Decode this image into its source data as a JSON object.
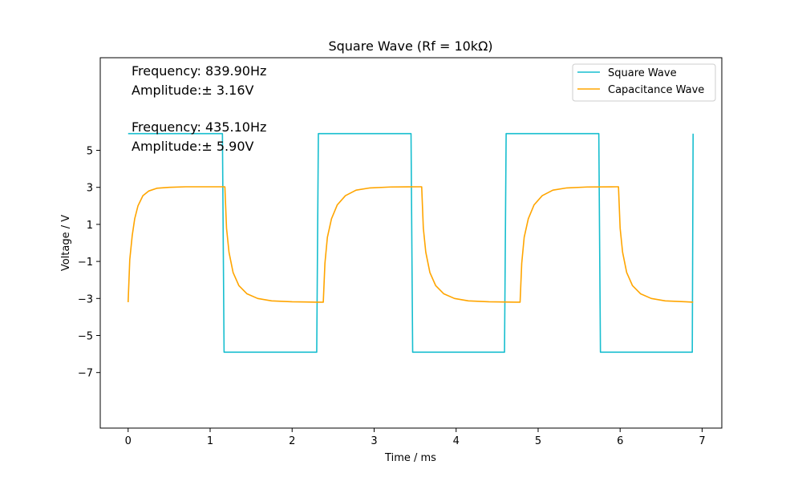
{
  "chart_data": {
    "type": "line",
    "title": "Square Wave (Rf = 10kΩ)",
    "xlabel": "Time / ms",
    "ylabel": "Voltage / V",
    "xlim": [
      -0.34,
      7.24
    ],
    "ylim": [
      -10.0,
      10.0
    ],
    "xticks": [
      0,
      1,
      2,
      3,
      4,
      5,
      6,
      7
    ],
    "xtick_labels": [
      "0",
      "1",
      "2",
      "3",
      "4",
      "5",
      "6",
      "7"
    ],
    "yticks": [
      -7,
      -5,
      -3,
      -1,
      1,
      3,
      5
    ],
    "ytick_labels": [
      "−7",
      "−5",
      "−3",
      "−1",
      "1",
      "3",
      "5"
    ],
    "grid": false,
    "legend_position": "top-right",
    "annotations": [
      "Frequency: 839.90Hz",
      "Amplitude:± 3.16V",
      "Frequency: 435.10Hz",
      "Amplitude:± 5.90V"
    ],
    "series": [
      {
        "name": "Square Wave",
        "color": "#17becf",
        "x": [
          0,
          1.15,
          1.17,
          2.3,
          2.32,
          3.45,
          3.47,
          4.59,
          4.61,
          5.74,
          5.76,
          6.88,
          6.89
        ],
        "y": [
          5.9,
          5.9,
          -5.9,
          -5.9,
          5.9,
          5.9,
          -5.9,
          -5.9,
          5.9,
          5.9,
          -5.9,
          -5.9,
          5.9
        ]
      },
      {
        "name": "Capacitance Wave",
        "color": "#ffa500",
        "x": [
          0.0,
          0.02,
          0.05,
          0.08,
          0.12,
          0.18,
          0.25,
          0.35,
          0.5,
          0.7,
          1.0,
          1.18,
          1.2,
          1.23,
          1.28,
          1.35,
          1.45,
          1.58,
          1.75,
          2.0,
          2.3,
          2.38,
          2.4,
          2.43,
          2.48,
          2.55,
          2.65,
          2.78,
          2.95,
          3.2,
          3.55,
          3.58,
          3.6,
          3.63,
          3.68,
          3.75,
          3.85,
          3.98,
          4.15,
          4.4,
          4.75,
          4.78,
          4.8,
          4.83,
          4.88,
          4.95,
          5.05,
          5.18,
          5.35,
          5.6,
          5.95,
          5.98,
          6.0,
          6.03,
          6.08,
          6.15,
          6.25,
          6.38,
          6.55,
          6.8,
          6.89
        ],
        "y": [
          -3.2,
          -0.9,
          0.4,
          1.3,
          2.0,
          2.55,
          2.8,
          2.95,
          3.0,
          3.03,
          3.03,
          3.03,
          0.8,
          -0.5,
          -1.6,
          -2.3,
          -2.75,
          -3.0,
          -3.13,
          -3.18,
          -3.2,
          -3.2,
          -1.1,
          0.3,
          1.3,
          2.05,
          2.55,
          2.85,
          2.97,
          3.02,
          3.03,
          3.03,
          0.8,
          -0.5,
          -1.6,
          -2.3,
          -2.75,
          -3.0,
          -3.13,
          -3.18,
          -3.2,
          -3.2,
          -1.1,
          0.3,
          1.3,
          2.05,
          2.55,
          2.85,
          2.97,
          3.02,
          3.03,
          3.03,
          0.8,
          -0.5,
          -1.6,
          -2.3,
          -2.75,
          -3.0,
          -3.13,
          -3.18,
          -3.2
        ]
      }
    ]
  }
}
